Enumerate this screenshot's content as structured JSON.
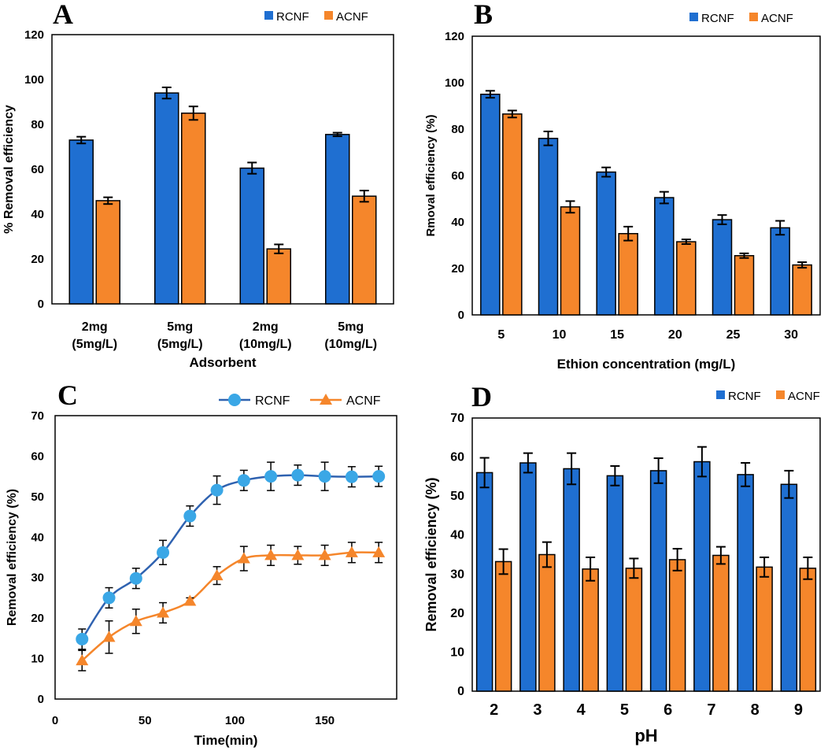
{
  "colors": {
    "rcnf": "#1f6fd1",
    "acnf": "#f5862b",
    "rcnf_line": "#2f62b0",
    "rcnf_marker": "#3aa7e6",
    "acnf_line": "#f5862b"
  },
  "chart_data": [
    {
      "id": "A",
      "panel_label": "A",
      "type": "bar",
      "xlabel": "Adsorbent",
      "ylabel": "% Removal efficiency",
      "ylim": [
        0,
        120
      ],
      "yticks": [
        0,
        20,
        40,
        60,
        80,
        100,
        120
      ],
      "categories": [
        [
          "2mg",
          "(5mg/L)"
        ],
        [
          "5mg",
          "(5mg/L)"
        ],
        [
          "2mg",
          "(10mg/L)"
        ],
        [
          "5mg",
          "(10mg/L)"
        ]
      ],
      "series": [
        {
          "name": "RCNF",
          "values": [
            73,
            94,
            60.5,
            75.5
          ],
          "errors": [
            1.5,
            2.5,
            2.5,
            0.8
          ]
        },
        {
          "name": "ACNF",
          "values": [
            46,
            85,
            24.5,
            48
          ],
          "errors": [
            1.5,
            3,
            2,
            2.5
          ]
        }
      ],
      "legend": "top-right",
      "grid": false
    },
    {
      "id": "B",
      "panel_label": "B",
      "type": "bar",
      "xlabel": "Ethion concentration (mg/L)",
      "ylabel": "Rmoval efficiency (%)",
      "ylim": [
        0,
        120
      ],
      "yticks": [
        0,
        20,
        40,
        60,
        80,
        100,
        120
      ],
      "categories": [
        "5",
        "10",
        "15",
        "20",
        "25",
        "30"
      ],
      "series": [
        {
          "name": "RCNF",
          "values": [
            95,
            76,
            61.5,
            50.5,
            41,
            37.5
          ],
          "errors": [
            1.5,
            3,
            2,
            2.5,
            2,
            3
          ]
        },
        {
          "name": "ACNF",
          "values": [
            86.5,
            46.5,
            35,
            31.5,
            25.5,
            21.5
          ],
          "errors": [
            1.5,
            2.5,
            3,
            1,
            1,
            1.2
          ]
        }
      ],
      "legend": "top-right",
      "grid": false
    },
    {
      "id": "C",
      "panel_label": "C",
      "type": "line",
      "xlabel": "Time(min)",
      "ylabel": "Removal efficiency (%)",
      "xlim": [
        0,
        190
      ],
      "xticks": [
        0,
        50,
        100,
        150
      ],
      "ylim": [
        0,
        70
      ],
      "yticks": [
        0,
        10,
        20,
        30,
        40,
        50,
        60,
        70
      ],
      "x": [
        15,
        30,
        45,
        60,
        75,
        90,
        105,
        120,
        135,
        150,
        165,
        180
      ],
      "series": [
        {
          "name": "RCNF",
          "marker": "circle",
          "values": [
            14.8,
            25,
            29.8,
            36.2,
            45.2,
            51.6,
            54,
            55,
            55.3,
            55,
            54.9,
            55
          ],
          "errors": [
            2.5,
            2.5,
            2.5,
            3,
            2.5,
            3.5,
            2.5,
            3.5,
            2.5,
            3.5,
            2.5,
            2.5
          ]
        },
        {
          "name": "ACNF",
          "marker": "triangle",
          "values": [
            9.5,
            15.3,
            19.2,
            21.3,
            24.2,
            30.5,
            34.7,
            35.5,
            35.5,
            35.5,
            36.2,
            36.2
          ],
          "errors": [
            2.5,
            4,
            3,
            2.5,
            0.8,
            2.2,
            3,
            2.5,
            2.2,
            2.5,
            2.5,
            2.5
          ]
        }
      ],
      "legend": "top-right",
      "grid": false
    },
    {
      "id": "D",
      "panel_label": "D",
      "type": "bar",
      "xlabel": "pH",
      "ylabel": "Removal efficiency (%)",
      "ylim": [
        0,
        70
      ],
      "yticks": [
        0,
        10,
        20,
        30,
        40,
        50,
        60,
        70
      ],
      "categories": [
        "2",
        "3",
        "4",
        "5",
        "6",
        "7",
        "8",
        "9"
      ],
      "series": [
        {
          "name": "RCNF",
          "values": [
            56,
            58.5,
            57,
            55.2,
            56.5,
            58.8,
            55.5,
            53
          ],
          "errors": [
            3.8,
            2.5,
            4,
            2.5,
            3.2,
            3.8,
            3,
            3.5
          ]
        },
        {
          "name": "ACNF",
          "values": [
            33.2,
            35,
            31.3,
            31.5,
            33.7,
            34.8,
            31.8,
            31.5
          ],
          "errors": [
            3.2,
            3.2,
            3,
            2.5,
            2.8,
            2.2,
            2.5,
            2.8
          ]
        }
      ],
      "legend": "top-right",
      "grid": false
    }
  ]
}
